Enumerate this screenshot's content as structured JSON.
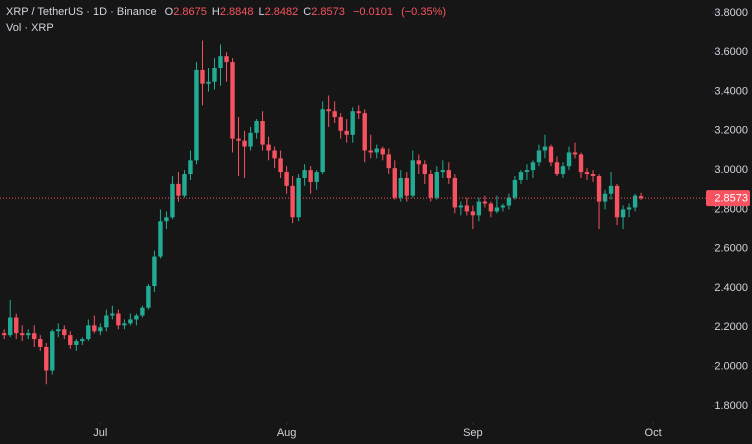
{
  "chart_data": {
    "type": "candlestick",
    "title": "XRP / TetherUS · 1D · Binance",
    "subtitle": "Vol · XRP",
    "ohlc": [
      {
        "key": "O",
        "value": 2.8675
      },
      {
        "key": "H",
        "value": 2.8848
      },
      {
        "key": "L",
        "value": 2.8482
      },
      {
        "key": "C",
        "value": 2.8573
      }
    ],
    "change": {
      "value": -0.0101,
      "label": "−0.0101"
    },
    "change_pct": {
      "value": -0.35,
      "label": "(−0.35%)"
    },
    "up_color": "#22ab94",
    "down_color": "#f7525f",
    "xlim": [
      -0.7,
      117.8
    ],
    "xticks": [
      {
        "value": 16,
        "label": "Jul"
      },
      {
        "value": 47,
        "label": "Aug"
      },
      {
        "value": 78,
        "label": "Sep"
      },
      {
        "value": 108,
        "label": "Oct"
      }
    ],
    "ylim": [
      1.718,
      3.866
    ],
    "yticks": [
      {
        "value": 3.8,
        "label": "3.8000"
      },
      {
        "value": 3.6,
        "label": "3.6000"
      },
      {
        "value": 3.4,
        "label": "3.4000"
      },
      {
        "value": 3.2,
        "label": "3.2000"
      },
      {
        "value": 3.0,
        "label": "3.0000"
      },
      {
        "value": 2.8,
        "label": "2.8000"
      },
      {
        "value": 2.6,
        "label": "2.6000"
      },
      {
        "value": 2.4,
        "label": "2.4000"
      },
      {
        "value": 2.2,
        "label": "2.2000"
      },
      {
        "value": 2.0,
        "label": "2.0000"
      },
      {
        "value": 1.8,
        "label": "1.8000"
      }
    ],
    "grid": false,
    "candles": {
      "open": [
        2.17,
        2.16,
        2.25,
        2.17,
        2.16,
        2.17,
        2.14,
        2.1,
        1.98,
        2.18,
        2.19,
        2.16,
        2.11,
        2.13,
        2.14,
        2.21,
        2.18,
        2.2,
        2.26,
        2.27,
        2.21,
        2.22,
        2.24,
        2.26,
        2.3,
        2.41,
        2.56,
        2.74,
        2.76,
        2.93,
        2.87,
        2.98,
        3.05,
        3.51,
        3.44,
        3.45,
        3.52,
        3.58,
        3.55,
        3.16,
        3.15,
        3.12,
        3.19,
        3.25,
        3.13,
        3.1,
        3.06,
        2.99,
        2.92,
        2.76,
        2.96,
        3.0,
        2.94,
        2.99,
        3.31,
        3.3,
        3.27,
        3.2,
        3.18,
        3.3,
        3.29,
        3.1,
        3.09,
        3.11,
        3.08,
        3.01,
        2.86,
        2.96,
        2.87,
        3.05,
        3.03,
        2.98,
        2.86,
        2.99,
        3.0,
        2.96,
        2.81,
        2.82,
        2.79,
        2.77,
        2.84,
        2.83,
        2.79,
        2.81,
        2.82,
        2.86,
        2.95,
        2.99,
        3.0,
        3.04,
        3.1,
        3.12,
        3.04,
        2.98,
        3.02,
        3.09,
        3.08,
        2.99,
        2.98,
        2.97,
        2.84,
        2.88,
        2.92,
        2.76,
        2.8,
        2.81,
        2.8675
      ],
      "high": [
        2.19,
        2.34,
        2.27,
        2.21,
        2.19,
        2.21,
        2.16,
        2.12,
        2.19,
        2.22,
        2.21,
        2.18,
        2.14,
        2.15,
        2.24,
        2.26,
        2.22,
        2.29,
        2.31,
        2.29,
        2.24,
        2.27,
        2.27,
        2.31,
        2.42,
        2.59,
        2.8,
        2.79,
        2.97,
        2.99,
        3.0,
        3.1,
        3.55,
        3.66,
        3.52,
        3.57,
        3.64,
        3.6,
        3.57,
        3.27,
        3.2,
        3.22,
        3.26,
        3.3,
        3.17,
        3.12,
        3.1,
        3.02,
        2.97,
        2.98,
        3.03,
        3.02,
        3.0,
        3.35,
        3.38,
        3.35,
        3.29,
        3.26,
        3.32,
        3.33,
        3.31,
        3.18,
        3.13,
        3.12,
        3.11,
        3.05,
        3.0,
        2.99,
        3.1,
        3.08,
        3.05,
        3.0,
        3.02,
        3.05,
        3.04,
        2.98,
        2.84,
        2.86,
        2.82,
        2.86,
        2.87,
        2.84,
        2.87,
        2.83,
        2.88,
        2.97,
        3.0,
        3.03,
        3.05,
        3.13,
        3.18,
        3.13,
        3.07,
        3.04,
        3.12,
        3.14,
        3.09,
        3.01,
        3.0,
        2.98,
        2.9,
        2.99,
        2.93,
        2.82,
        2.83,
        2.88,
        2.8848
      ],
      "low": [
        2.14,
        2.15,
        2.14,
        2.13,
        2.14,
        2.1,
        2.08,
        1.91,
        1.96,
        2.15,
        2.14,
        2.09,
        2.08,
        2.11,
        2.13,
        2.17,
        2.16,
        2.18,
        2.24,
        2.19,
        2.19,
        2.21,
        2.21,
        2.25,
        2.29,
        2.38,
        2.55,
        2.7,
        2.75,
        2.84,
        2.86,
        2.95,
        3.03,
        3.33,
        3.4,
        3.41,
        3.43,
        3.45,
        3.09,
        2.97,
        2.96,
        3.1,
        3.16,
        3.1,
        3.05,
        3.01,
        2.96,
        2.88,
        2.73,
        2.74,
        2.92,
        2.88,
        2.9,
        2.98,
        3.22,
        3.24,
        3.16,
        3.14,
        3.14,
        3.26,
        3.04,
        3.06,
        3.06,
        3.05,
        2.98,
        2.85,
        2.84,
        2.84,
        2.86,
        2.98,
        2.93,
        2.84,
        2.85,
        2.96,
        2.93,
        2.78,
        2.77,
        2.77,
        2.7,
        2.74,
        2.81,
        2.76,
        2.78,
        2.79,
        2.8,
        2.85,
        2.93,
        2.95,
        2.96,
        3.02,
        3.06,
        3.02,
        2.97,
        2.96,
        3.0,
        3.06,
        2.96,
        2.95,
        2.94,
        2.7,
        2.8,
        2.85,
        2.72,
        2.7,
        2.76,
        2.79,
        2.8482
      ],
      "close": [
        2.16,
        2.25,
        2.17,
        2.16,
        2.17,
        2.14,
        2.1,
        1.98,
        2.18,
        2.19,
        2.16,
        2.11,
        2.13,
        2.14,
        2.21,
        2.18,
        2.2,
        2.26,
        2.27,
        2.21,
        2.22,
        2.24,
        2.26,
        2.3,
        2.41,
        2.56,
        2.74,
        2.76,
        2.93,
        2.87,
        2.98,
        3.05,
        3.51,
        3.44,
        3.45,
        3.52,
        3.58,
        3.55,
        3.16,
        3.15,
        3.12,
        3.19,
        3.25,
        3.13,
        3.1,
        3.06,
        2.99,
        2.92,
        2.76,
        2.96,
        3.0,
        2.94,
        2.99,
        3.31,
        3.3,
        3.27,
        3.2,
        3.18,
        3.3,
        3.29,
        3.1,
        3.09,
        3.11,
        3.08,
        3.01,
        2.86,
        2.96,
        2.87,
        3.05,
        3.03,
        2.98,
        2.86,
        2.99,
        3.0,
        2.96,
        2.81,
        2.82,
        2.79,
        2.77,
        2.84,
        2.83,
        2.79,
        2.81,
        2.82,
        2.86,
        2.95,
        2.99,
        3.0,
        3.04,
        3.1,
        3.12,
        3.04,
        2.98,
        3.02,
        3.09,
        3.08,
        2.99,
        2.98,
        2.97,
        2.84,
        2.88,
        2.92,
        2.76,
        2.8,
        2.81,
        2.87,
        2.8573
      ]
    }
  }
}
